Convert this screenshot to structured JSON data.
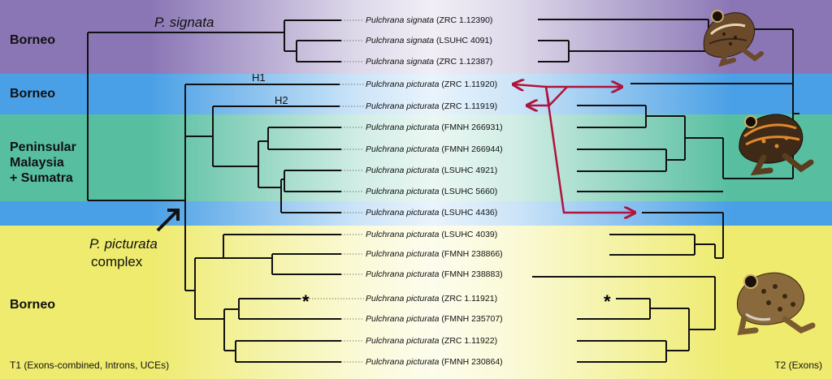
{
  "regions": [
    {
      "label": "Borneo"
    },
    {
      "label": "Borneo"
    },
    {
      "label": "Peninsular\nMalaysia\n+ Sumatra"
    },
    {
      "label": "Borneo"
    }
  ],
  "colors": {
    "band_signata": "#8a76b5",
    "band_borneo_blue": "#4aa0e6",
    "band_peninsular": "#57bea0",
    "band_borneo_yellow": "#eeeb6e",
    "connector_arrow": "#b0143c",
    "tree_line": "#111111"
  },
  "taxa": [
    {
      "genus": "Pulchrana signata",
      "voucher": "(ZRC 1.12390)"
    },
    {
      "genus": "Pulchrana signata",
      "voucher": "(LSUHC 4091)"
    },
    {
      "genus": "Pulchrana signata",
      "voucher": "(ZRC 1.12387)"
    },
    {
      "genus": "Pulchrana picturata",
      "voucher": "(ZRC 1.11920)"
    },
    {
      "genus": "Pulchrana picturata",
      "voucher": "(ZRC 1.11919)"
    },
    {
      "genus": "Pulchrana picturata",
      "voucher": "(FMNH 266931)"
    },
    {
      "genus": "Pulchrana picturata",
      "voucher": "(FMNH 266944)"
    },
    {
      "genus": "Pulchrana picturata",
      "voucher": "(LSUHC 4921)"
    },
    {
      "genus": "Pulchrana picturata",
      "voucher": "(LSUHC 5660)"
    },
    {
      "genus": "Pulchrana picturata",
      "voucher": "(LSUHC 4436)"
    },
    {
      "genus": "Pulchrana picturata",
      "voucher": "(LSUHC 4039)"
    },
    {
      "genus": "Pulchrana picturata",
      "voucher": "(FMNH 238866)"
    },
    {
      "genus": "Pulchrana picturata",
      "voucher": "(FMNH 238883)"
    },
    {
      "genus": "Pulchrana picturata",
      "voucher": "(ZRC 1.11921)"
    },
    {
      "genus": "Pulchrana picturata",
      "voucher": "(FMNH 235707)"
    },
    {
      "genus": "Pulchrana picturata",
      "voucher": "(ZRC 1.11922)"
    },
    {
      "genus": "Pulchrana picturata",
      "voucher": "(FMNH 230864)"
    }
  ],
  "labels": {
    "signata_clade": "P. signata",
    "picturata_clade_line1": "P. picturata",
    "picturata_clade_line2": "complex",
    "h1": "H1",
    "h2": "H2",
    "star_left": "*",
    "star_right": "*"
  },
  "footer": {
    "left": "T1 (Exons-combined, Introns, UCEs)",
    "right": "T2 (Exons)"
  },
  "icons": [
    "frog-signata-photo",
    "frog-picturata-orange-photo",
    "frog-picturata-spotted-photo",
    "clade-arrow-icon"
  ]
}
